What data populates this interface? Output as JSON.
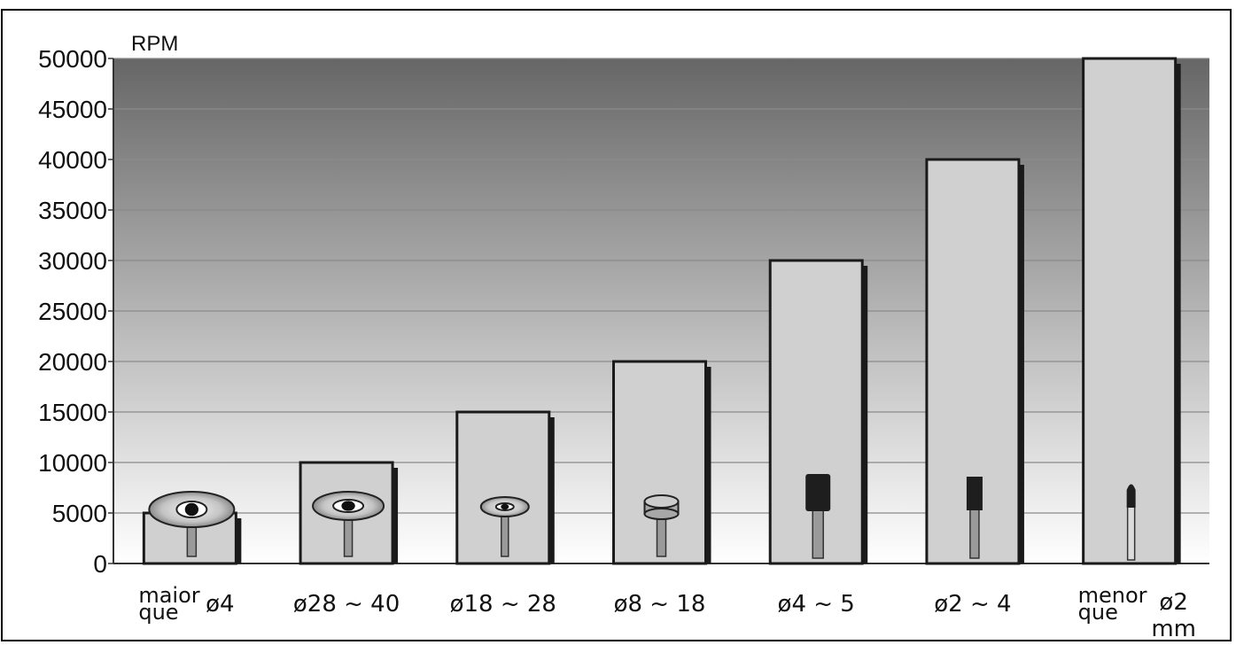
{
  "chart_data": {
    "type": "bar",
    "unit_label": "RPM",
    "ylim": [
      0,
      50000
    ],
    "yticks": [
      "0",
      "5000",
      "10000",
      "15000",
      "20000",
      "25000",
      "30000",
      "35000",
      "40000",
      "45000",
      "50000"
    ],
    "grid": true,
    "categories": [
      {
        "prefix": "maior que",
        "label": "ø4"
      },
      {
        "prefix": "",
        "label": "ø28 ~ 40"
      },
      {
        "prefix": "",
        "label": "ø18 ~ 28"
      },
      {
        "prefix": "",
        "label": "ø8 ~ 18"
      },
      {
        "prefix": "",
        "label": "ø4 ~ 5"
      },
      {
        "prefix": "",
        "label": "ø2 ~ 4"
      },
      {
        "prefix": "menor que",
        "label": "ø2 mm"
      }
    ],
    "values": [
      5000,
      10000,
      15000,
      20000,
      30000,
      40000,
      50000
    ],
    "tool_icons": [
      "large-wheel-icon",
      "wheel-icon",
      "small-wheel-icon",
      "cylinder-point-icon",
      "large-bur-icon",
      "small-bur-icon",
      "fine-point-icon"
    ],
    "colors": {
      "bar_fill": "#d0d0d0",
      "bar_stroke": "#1a1a1a",
      "bg_top": "#6a6a6a",
      "bg_bottom": "#ffffff",
      "grid": "#8a8a8a"
    }
  }
}
